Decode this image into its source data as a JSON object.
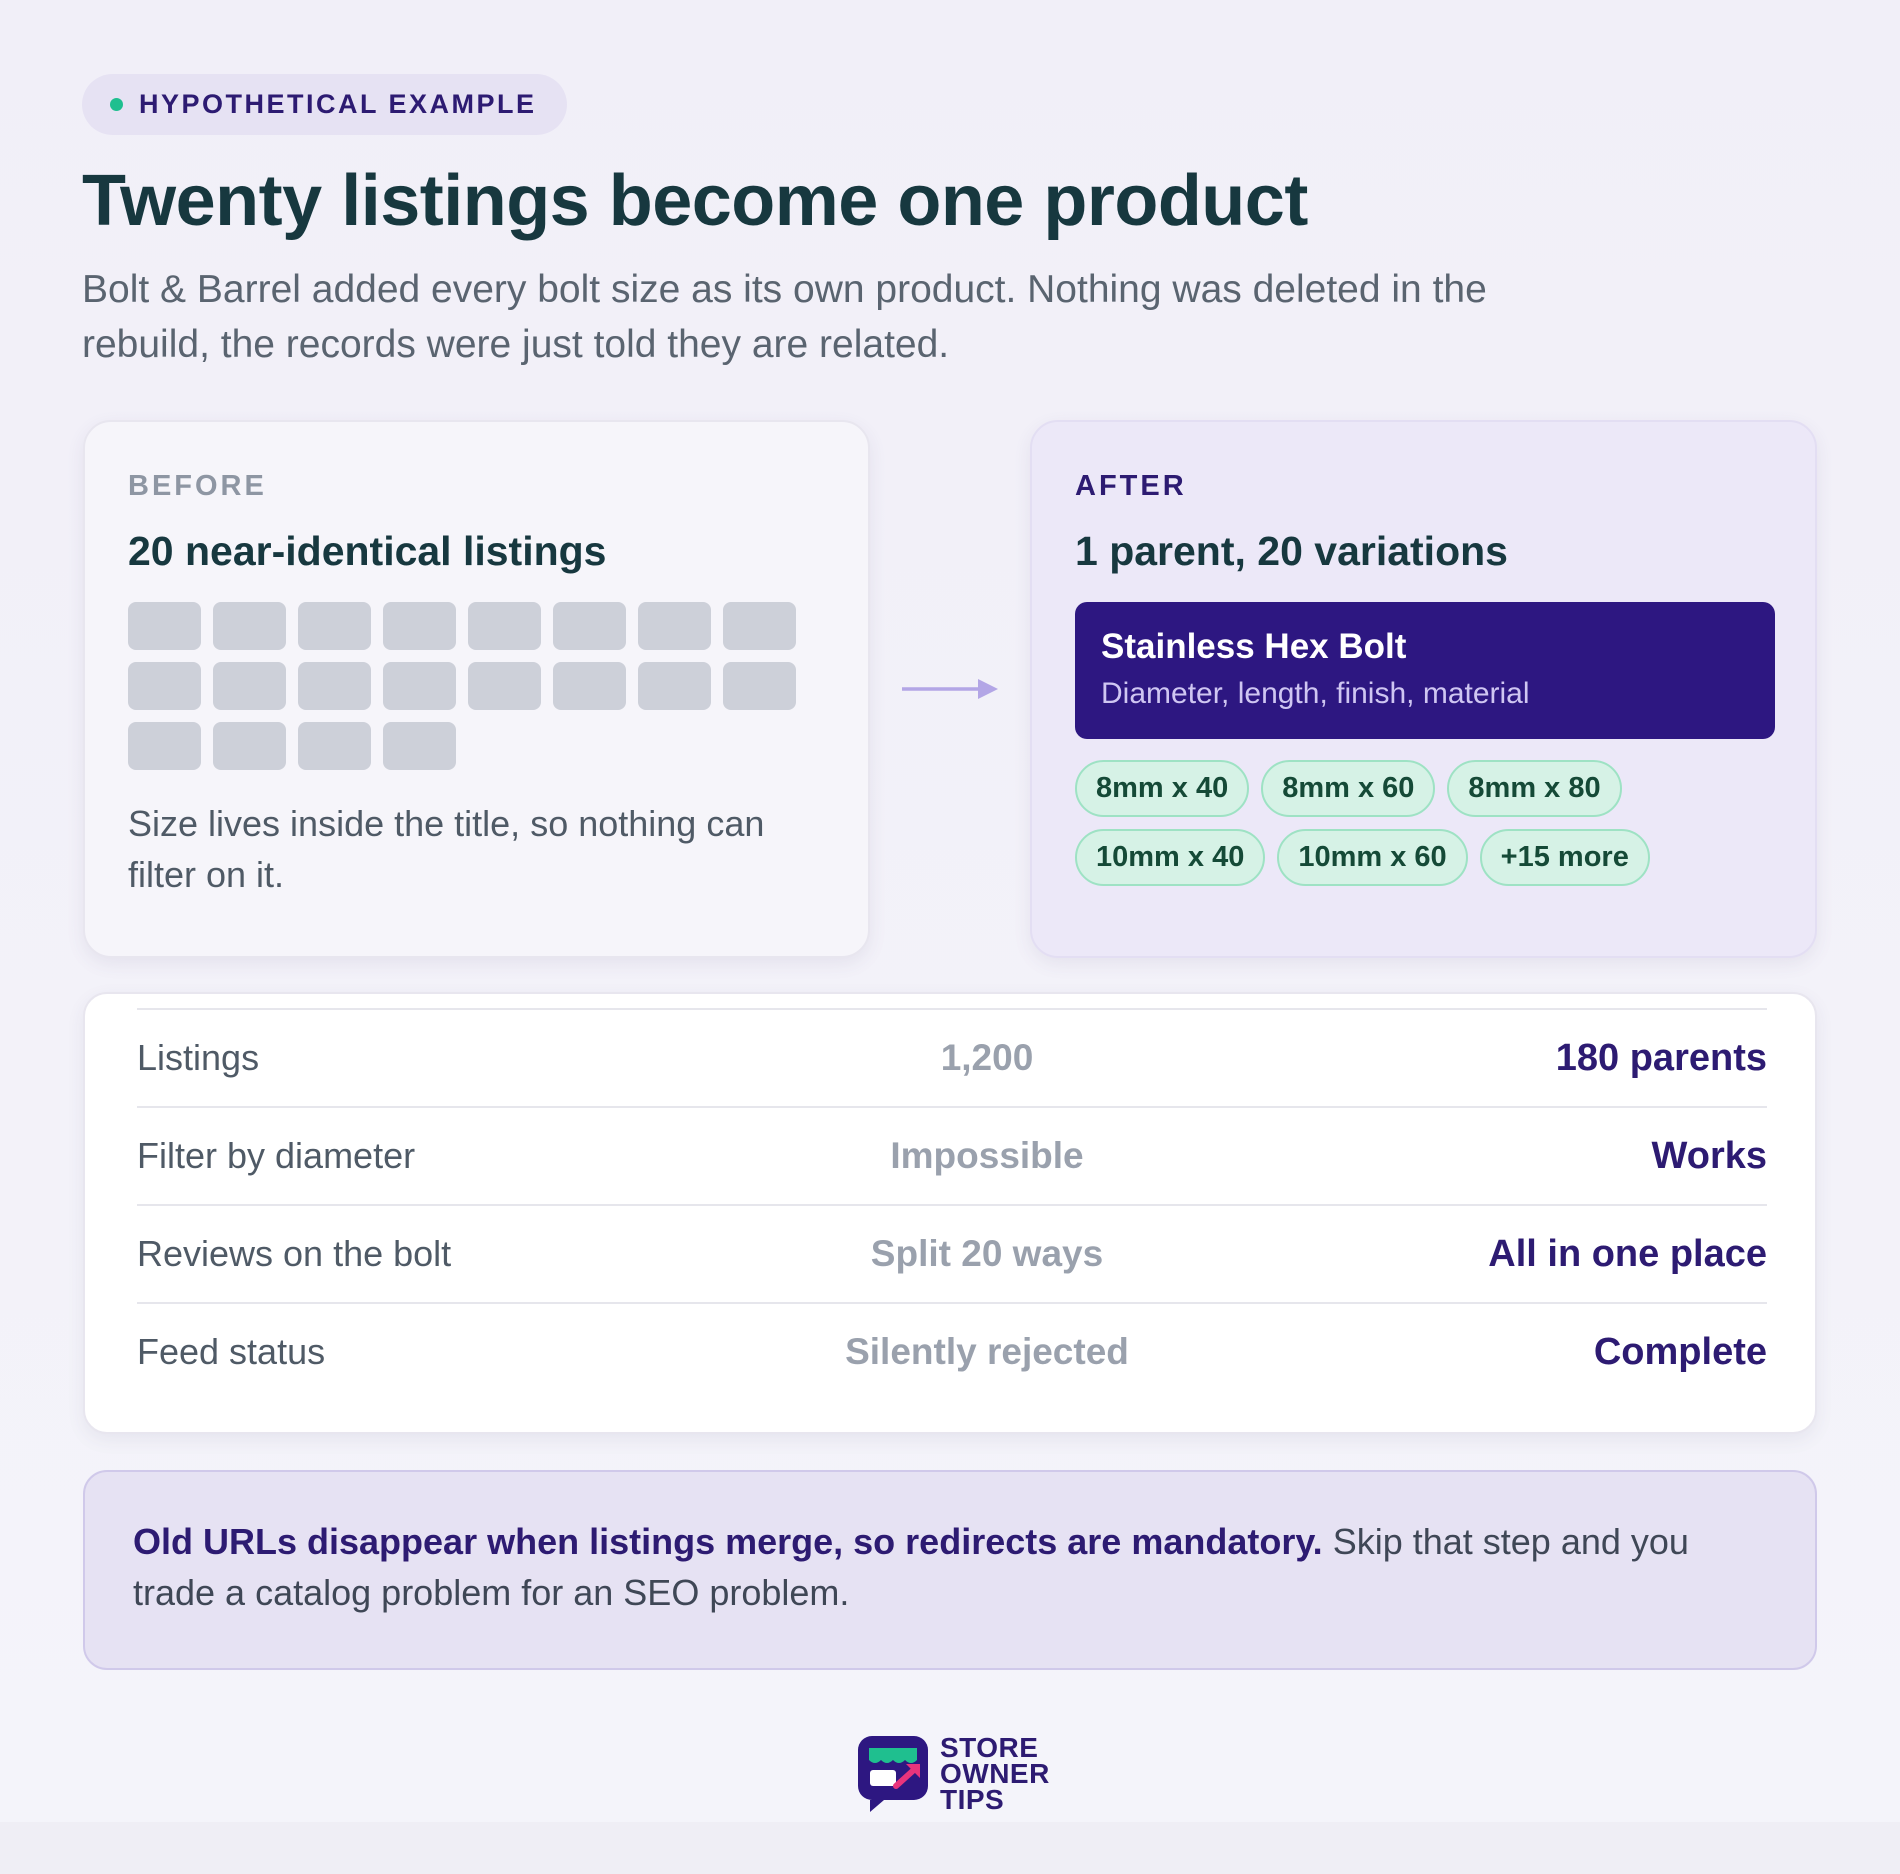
{
  "badge": {
    "label": "HYPOTHETICAL EXAMPLE"
  },
  "header": {
    "title": "Twenty listings become one product",
    "subtitle": "Bolt & Barrel added every bolt size as its own product. Nothing was deleted in the rebuild, the records were just told they are related."
  },
  "before": {
    "label": "BEFORE",
    "heading": "20 near-identical listings",
    "listing_count": 20,
    "note": "Size lives inside the title, so nothing can filter on it."
  },
  "after": {
    "label": "AFTER",
    "heading": "1 parent, 20 variations",
    "parent_name": "Stainless Hex Bolt",
    "parent_attributes": "Diameter, length, finish, material",
    "variations": [
      "8mm x 40",
      "8mm x 60",
      "8mm x 80",
      "10mm x 40",
      "10mm x 60",
      "+15 more"
    ]
  },
  "comparison": [
    {
      "label": "Listings",
      "before": "1,200",
      "after": "180 parents"
    },
    {
      "label": "Filter by diameter",
      "before": "Impossible",
      "after": "Works"
    },
    {
      "label": "Reviews on the bolt",
      "before": "Split 20 ways",
      "after": "All in one place"
    },
    {
      "label": "Feed status",
      "before": "Silently rejected",
      "after": "Complete"
    }
  ],
  "callout": {
    "bold": "Old URLs disappear when listings merge, so redirects are mandatory.",
    "rest": " Skip that step and you trade a catalog problem for an SEO problem."
  },
  "logo": {
    "line1": "STORE",
    "line2": "OWNER",
    "line3": "TIPS"
  },
  "colors": {
    "accent": "#2d1b72",
    "parent_box": "#2d1781",
    "chip_bg": "#d6f2e6",
    "chip_border": "#9ee2c4",
    "dot": "#1fbf8f",
    "placeholder": "#cdd0d9"
  }
}
